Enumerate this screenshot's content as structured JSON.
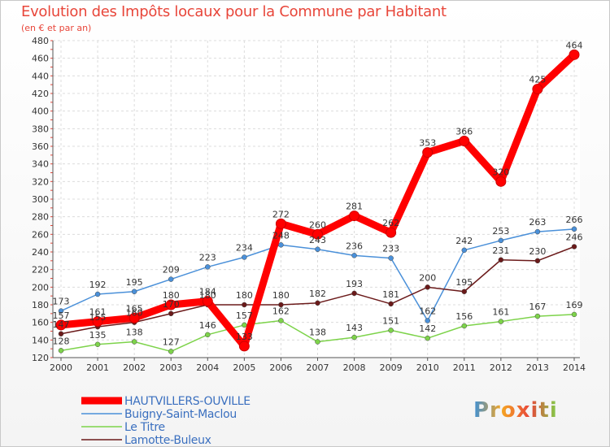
{
  "title": "Evolution des Impôts locaux pour la Commune par Habitant",
  "subtitle": "(en € et par an)",
  "logo_text": "Proxiti",
  "chart_data": {
    "type": "line",
    "title": "Evolution des Impôts locaux pour la Commune par Habitant",
    "subtitle": "(en € et par an)",
    "xlabel": "",
    "ylabel": "",
    "x": [
      "2000",
      "2001",
      "2002",
      "2003",
      "2004",
      "2005",
      "2006",
      "2007",
      "2008",
      "2009",
      "2010",
      "2011",
      "2012",
      "2013",
      "2014"
    ],
    "ylim": [
      120,
      480
    ],
    "yticks": [
      120,
      140,
      160,
      180,
      200,
      220,
      240,
      260,
      280,
      300,
      320,
      340,
      360,
      380,
      400,
      420,
      440,
      460,
      480
    ],
    "grid": true,
    "legend_position": "bottom-left",
    "series": [
      {
        "name": "HAUTVILLERS-OUVILLE",
        "color": "#ff0000",
        "values": [
          157,
          161,
          165,
          180,
          184,
          133,
          272,
          260,
          281,
          262,
          353,
          366,
          320,
          425,
          464
        ]
      },
      {
        "name": "Buigny-Saint-Maclou",
        "color": "#4a90d9",
        "values": [
          173,
          192,
          195,
          209,
          223,
          234,
          248,
          243,
          236,
          233,
          162,
          242,
          253,
          263,
          266
        ]
      },
      {
        "name": "Le Titre",
        "color": "#7dd34a",
        "values": [
          128,
          135,
          138,
          127,
          146,
          157,
          162,
          138,
          143,
          151,
          142,
          156,
          161,
          167,
          169
        ]
      },
      {
        "name": "Lamotte-Buleux",
        "color": "#6b1a1a",
        "values": [
          147,
          155,
          160,
          170,
          180,
          180,
          180,
          182,
          193,
          181,
          200,
          195,
          231,
          230,
          246
        ]
      }
    ]
  }
}
